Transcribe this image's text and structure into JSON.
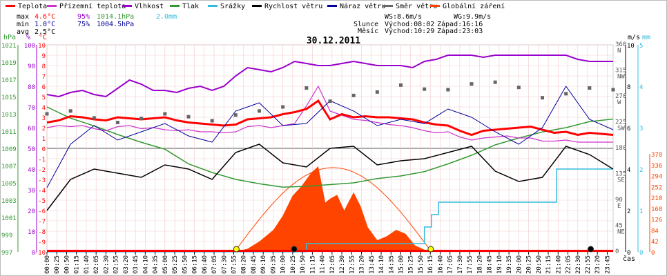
{
  "legend": [
    {
      "label": "Teplota",
      "color": "#ff0000"
    },
    {
      "label": "Přízemní teplota",
      "color": "#cc33cc"
    },
    {
      "label": "Vlhkost",
      "color": "#9900cc"
    },
    {
      "label": "Tlak",
      "color": "#339933"
    },
    {
      "label": "Srážky",
      "color": "#33bbdd"
    },
    {
      "label": "Rychlost větru",
      "color": "#000000"
    },
    {
      "label": "Náraz větru",
      "color": "#000099"
    },
    {
      "label": "Směr větru",
      "color": "#666666"
    },
    {
      "label": "Globální záření",
      "color": "#ff4400"
    }
  ],
  "stats": {
    "max": {
      "label": "max",
      "temp": "4.6°C",
      "hum": "95%",
      "press": "1014.1hPa",
      "rain": "2.0mm"
    },
    "min": {
      "label": "min",
      "temp": "1.0°C",
      "hum": "75%",
      "press": "1004.5hPa"
    },
    "avg": {
      "label": "avg",
      "temp": "2.5°C"
    }
  },
  "wind_info": {
    "ws": "WS:8.6m/s",
    "wg": "WG:9.9m/s"
  },
  "sun_info": {
    "label": "Slunce",
    "rise": "Východ:08:02",
    "set": "Západ:16:16"
  },
  "moon_info": {
    "label": "Měsíc",
    "rise": "Východ:10:29",
    "set": "Západ:23:03"
  },
  "colors": {
    "temp": "#ff0000",
    "ground": "#cc33cc",
    "hum": "#9900cc",
    "press": "#339933",
    "rain": "#33bbdd",
    "wind": "#000000",
    "gust": "#000099",
    "dir": "#666666",
    "rad": "#ff4400",
    "grid": "#cc0000"
  },
  "chart_data": {
    "type": "line",
    "title": "30.12.2011",
    "xlabel": "čas",
    "x_ticks": [
      "00:00",
      "00:25",
      "00:50",
      "01:15",
      "01:40",
      "02:05",
      "02:30",
      "02:55",
      "03:20",
      "03:45",
      "04:10",
      "04:35",
      "05:00",
      "05:25",
      "05:50",
      "06:15",
      "06:40",
      "07:05",
      "07:30",
      "07:55",
      "08:20",
      "08:45",
      "09:10",
      "09:35",
      "10:00",
      "10:25",
      "10:50",
      "11:15",
      "11:40",
      "12:05",
      "12:30",
      "12:55",
      "13:20",
      "13:45",
      "14:10",
      "14:35",
      "15:00",
      "15:25",
      "15:50",
      "16:15",
      "16:40",
      "17:05",
      "17:30",
      "17:55",
      "18:20",
      "18:45",
      "19:10",
      "19:35",
      "20:00",
      "20:25",
      "20:50",
      "21:15",
      "21:40",
      "22:05",
      "22:30",
      "22:55",
      "23:20",
      "23:45"
    ],
    "axes": {
      "pressure": {
        "label": "hPa",
        "ticks": [
          "997",
          "999",
          "1001",
          "1003",
          "1005",
          "1007",
          "1009",
          "1011",
          "1013",
          "1015",
          "1017",
          "1019",
          "1021"
        ]
      },
      "humidity": {
        "label": "%",
        "ticks": [
          "0",
          "10",
          "20",
          "30",
          "40",
          "50",
          "60",
          "70",
          "80",
          "90",
          "100"
        ]
      },
      "temperature": {
        "label": "°C",
        "ticks": [
          "-10",
          "-9",
          "-8",
          "-7",
          "-6",
          "-5",
          "-4",
          "-3",
          "-2",
          "-1",
          "0",
          "1",
          "2",
          "3",
          "4",
          "5",
          "6",
          "7",
          "8",
          "9",
          "10"
        ],
        "ylim": [
          -10,
          10
        ]
      },
      "direction": {
        "label": "",
        "ticks": [
          "0",
          "45",
          "90",
          "135",
          "180",
          "225",
          "270",
          "315",
          "360"
        ],
        "dirs": [
          "NE",
          "E",
          "SE",
          "",
          "SW",
          "W",
          "NW",
          "N"
        ]
      },
      "wind": {
        "label": "m/s",
        "ticks": [
          "0",
          "2",
          "4",
          "6",
          "8",
          "10"
        ]
      },
      "rain": {
        "label": "mm",
        "ticks": [
          "0",
          "1",
          "2",
          "3",
          "4",
          "5"
        ]
      },
      "radiation": {
        "label": "",
        "ticks": [
          "0",
          "42",
          "84",
          "126",
          "168",
          "210",
          "252",
          "294",
          "336",
          "378"
        ]
      }
    },
    "series": [
      {
        "name": "Teplota",
        "unit": "°C",
        "x": [
          0,
          0.5,
          1,
          1.5,
          2,
          2.5,
          3,
          3.5,
          4,
          4.5,
          5,
          5.5,
          6,
          6.5,
          7,
          7.5,
          8,
          8.5,
          9,
          9.5,
          10,
          10.5,
          11,
          11.5,
          12,
          12.5,
          13,
          13.5,
          14,
          14.5,
          15,
          15.5,
          16,
          16.5,
          17,
          17.5,
          18,
          18.5,
          19,
          19.5,
          20,
          20.5,
          21,
          21.5,
          22,
          22.5,
          23,
          23.5,
          24
        ],
        "y": [
          2.5,
          2.7,
          3.1,
          3.0,
          2.8,
          2.7,
          3.0,
          2.9,
          2.8,
          2.9,
          3.0,
          2.7,
          2.5,
          2.4,
          2.3,
          2.2,
          2.3,
          2.8,
          2.9,
          3.0,
          3.3,
          3.5,
          3.8,
          4.6,
          2.8,
          3.3,
          3.0,
          3.1,
          3.0,
          3.0,
          2.9,
          2.8,
          2.5,
          2.3,
          2.2,
          1.7,
          1.3,
          1.7,
          1.8,
          1.9,
          2.0,
          2.1,
          1.8,
          1.5,
          1.6,
          1.3,
          1.5,
          1.4,
          1.3
        ]
      },
      {
        "name": "Přízemní teplota",
        "unit": "°C",
        "x": [
          0,
          0.5,
          1,
          1.5,
          2,
          2.5,
          3,
          3.5,
          4,
          4.5,
          5,
          5.5,
          6,
          6.5,
          7,
          7.5,
          8,
          8.5,
          9,
          9.5,
          10,
          10.5,
          11,
          11.5,
          12,
          12.5,
          13,
          13.5,
          14,
          14.5,
          15,
          15.5,
          16,
          16.5,
          17,
          17.5,
          18,
          18.5,
          19,
          19.5,
          20,
          20.5,
          21,
          21.5,
          22,
          22.5,
          23,
          23.5,
          24
        ],
        "y": [
          2.0,
          2.2,
          2.1,
          2.2,
          1.9,
          1.7,
          2.1,
          2.2,
          1.9,
          2.0,
          1.8,
          1.7,
          1.8,
          1.6,
          1.6,
          1.5,
          1.6,
          2.1,
          2.2,
          2.0,
          2.2,
          2.4,
          4.1,
          6.0,
          3.6,
          3.2,
          2.8,
          2.7,
          2.5,
          2.3,
          2.2,
          2.0,
          1.7,
          1.5,
          1.6,
          1.1,
          0.8,
          1.0,
          1.1,
          1.2,
          1.0,
          1.0,
          0.7,
          0.7,
          0.8,
          0.6,
          0.6,
          0.6,
          0.6
        ]
      },
      {
        "name": "Vlhkost",
        "unit": "%",
        "x": [
          0,
          0.5,
          1,
          1.5,
          2,
          2.5,
          3,
          3.5,
          4,
          4.5,
          5,
          5.5,
          6,
          6.5,
          7,
          7.5,
          8,
          8.5,
          9,
          9.5,
          10,
          10.5,
          11,
          11.5,
          12,
          12.5,
          13,
          13.5,
          14,
          14.5,
          15,
          15.5,
          16,
          16.5,
          17,
          17.5,
          18,
          18.5,
          19,
          19.5,
          20,
          20.5,
          21,
          21.5,
          22,
          22.5,
          23,
          23.5,
          24
        ],
        "y": [
          76,
          75,
          77,
          78,
          76,
          75,
          79,
          83,
          81,
          78,
          78,
          77,
          79,
          80,
          78,
          80,
          85,
          89,
          88,
          87,
          89,
          92,
          91,
          90,
          90,
          91,
          92,
          91,
          90,
          90,
          90,
          89,
          92,
          93,
          95,
          95,
          95,
          94,
          95,
          95,
          95,
          95,
          95,
          95,
          95,
          93,
          92,
          92,
          92
        ]
      },
      {
        "name": "Tlak",
        "unit": "hPa",
        "x": [
          0,
          1,
          2,
          3,
          4,
          5,
          6,
          7,
          8,
          9,
          10,
          11,
          12,
          13,
          14,
          15,
          16,
          17,
          18,
          19,
          20,
          21,
          22,
          23,
          24
        ],
        "y": [
          1013.8,
          1012.5,
          1011.6,
          1010.6,
          1009.7,
          1008.9,
          1007.2,
          1006.2,
          1005.4,
          1004.9,
          1004.5,
          1004.6,
          1004.8,
          1005.0,
          1005.5,
          1005.8,
          1006.3,
          1007.2,
          1008.2,
          1009.4,
          1010.2,
          1010.9,
          1011.4,
          1012.1,
          1012.4
        ]
      },
      {
        "name": "Srážky",
        "unit": "mm",
        "x": [
          0,
          7.8,
          11.0,
          15.6,
          16.0,
          16.3,
          16.6,
          18.2,
          21.2,
          21.6,
          24
        ],
        "y": [
          0,
          0,
          0.2,
          0.2,
          0.6,
          0.9,
          1.2,
          1.2,
          1.2,
          2.0,
          2.0
        ]
      },
      {
        "name": "Rychlost větru",
        "unit": "m/s",
        "x": [
          0,
          1,
          2,
          3,
          4,
          5,
          6,
          7,
          8,
          9,
          10,
          11,
          12,
          13,
          14,
          15,
          16,
          17,
          18,
          19,
          20,
          21,
          22,
          23,
          24
        ],
        "y": [
          2.0,
          3.5,
          4.0,
          3.8,
          3.6,
          4.2,
          4.0,
          3.5,
          4.8,
          5.2,
          4.3,
          4.1,
          5.0,
          5.1,
          4.2,
          4.4,
          4.5,
          4.8,
          5.1,
          3.9,
          3.4,
          3.6,
          5.1,
          4.7,
          4.0
        ]
      },
      {
        "name": "Náraz větru",
        "unit": "m/s",
        "x": [
          0,
          1,
          2,
          3,
          4,
          5,
          6,
          7,
          8,
          9,
          10,
          11,
          12,
          13,
          14,
          15,
          16,
          17,
          18,
          19,
          20,
          21,
          22,
          23,
          24
        ],
        "y": [
          3.1,
          5.2,
          6.1,
          5.4,
          5.8,
          6.2,
          5.6,
          5.3,
          6.8,
          7.2,
          6.1,
          6.2,
          7.3,
          6.8,
          6.1,
          6.4,
          6.2,
          6.9,
          6.5,
          5.8,
          5.2,
          6.0,
          8.0,
          6.4,
          5.9
        ]
      },
      {
        "name": "Směr větru",
        "unit": "°",
        "x": [
          0,
          1,
          2,
          3,
          4,
          5,
          6,
          7,
          8,
          9,
          10,
          11,
          12,
          13,
          14,
          15,
          16,
          17,
          18,
          19,
          20,
          21,
          22,
          23,
          24
        ],
        "y": [
          240,
          245,
          233,
          225,
          232,
          240,
          235,
          228,
          238,
          245,
          252,
          285,
          262,
          272,
          278,
          290,
          283,
          282,
          292,
          295,
          286,
          268,
          275,
          285,
          282
        ]
      },
      {
        "name": "Globální záření",
        "unit": "W/m²",
        "x": [
          0,
          7.95,
          8.5,
          9.0,
          9.6,
          10.0,
          10.4,
          10.8,
          11.2,
          11.5,
          11.8,
          12.0,
          12.3,
          12.6,
          13.0,
          13.3,
          13.6,
          14.0,
          14.4,
          14.8,
          15.2,
          15.6,
          16.2,
          24
        ],
        "y": [
          0,
          0,
          12,
          40,
          85,
          140,
          215,
          255,
          305,
          330,
          190,
          205,
          220,
          160,
          230,
          175,
          95,
          45,
          60,
          85,
          70,
          25,
          0,
          0
        ]
      }
    ]
  }
}
